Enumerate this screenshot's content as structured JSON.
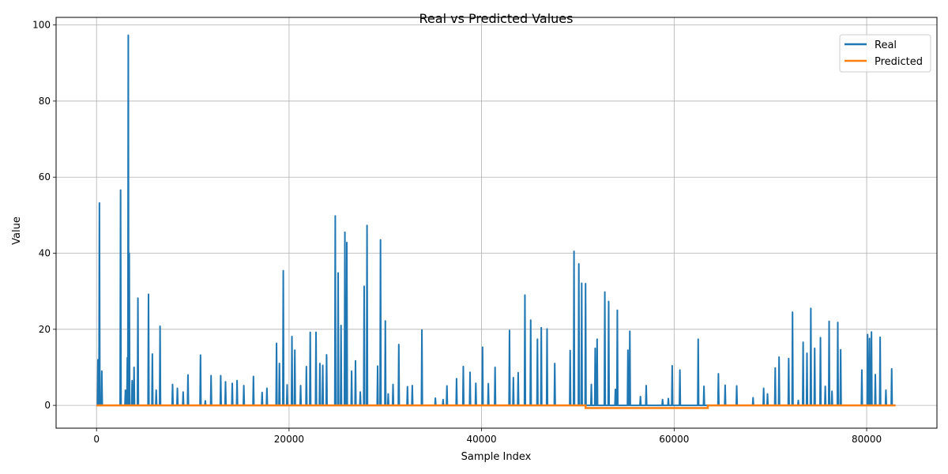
{
  "chart_data": {
    "type": "line",
    "title": "Real vs Predicted Values",
    "xlabel": "Sample Index",
    "ylabel": "Value",
    "xlim": [
      -4200,
      87300
    ],
    "ylim": [
      -6,
      102
    ],
    "x_ticks": [
      0,
      20000,
      40000,
      60000,
      80000
    ],
    "x_tick_labels": [
      "0",
      "20000",
      "40000",
      "60000",
      "80000"
    ],
    "y_ticks": [
      0,
      20,
      40,
      60,
      80,
      100
    ],
    "y_tick_labels": [
      "0",
      "20",
      "40",
      "60",
      "80",
      "100"
    ],
    "grid": true,
    "legend_position": "top-right",
    "series": [
      {
        "name": "Real",
        "color": "#1f77b4",
        "peaks": [
          [
            150,
            12
          ],
          [
            300,
            53.2
          ],
          [
            550,
            9
          ],
          [
            2500,
            56.6
          ],
          [
            3000,
            4
          ],
          [
            3200,
            12.5
          ],
          [
            3300,
            97.3
          ],
          [
            3400,
            40
          ],
          [
            3700,
            6.5
          ],
          [
            3900,
            10
          ],
          [
            4300,
            28.2
          ],
          [
            5400,
            29.2
          ],
          [
            5800,
            13.5
          ],
          [
            6200,
            4
          ],
          [
            6600,
            20.8
          ],
          [
            7900,
            5.5
          ],
          [
            8400,
            4.5
          ],
          [
            9000,
            3.5
          ],
          [
            9500,
            8
          ],
          [
            10800,
            13.2
          ],
          [
            11300,
            1.2
          ],
          [
            11900,
            7.8
          ],
          [
            12900,
            7.8
          ],
          [
            13400,
            6.2
          ],
          [
            14100,
            5.8
          ],
          [
            14600,
            6.5
          ],
          [
            15300,
            5.2
          ],
          [
            16300,
            7.6
          ],
          [
            17200,
            3.4
          ],
          [
            17700,
            4.5
          ],
          [
            18700,
            16.3
          ],
          [
            19000,
            11
          ],
          [
            19400,
            35.4
          ],
          [
            19800,
            5.4
          ],
          [
            20300,
            18.1
          ],
          [
            20600,
            14.5
          ],
          [
            21200,
            5.2
          ],
          [
            21800,
            10.2
          ],
          [
            22200,
            19.2
          ],
          [
            22800,
            19.2
          ],
          [
            23200,
            11
          ],
          [
            23500,
            10.5
          ],
          [
            23900,
            13.3
          ],
          [
            24800,
            49.8
          ],
          [
            25100,
            34.8
          ],
          [
            25400,
            21
          ],
          [
            25800,
            45.5
          ],
          [
            26000,
            42.8
          ],
          [
            26500,
            9
          ],
          [
            26900,
            11.7
          ],
          [
            27400,
            3.5
          ],
          [
            27800,
            31.3
          ],
          [
            28100,
            47.3
          ],
          [
            29200,
            10.3
          ],
          [
            29500,
            43.5
          ],
          [
            30000,
            22.2
          ],
          [
            30300,
            3
          ],
          [
            30800,
            5.5
          ],
          [
            31400,
            16
          ],
          [
            32300,
            4.9
          ],
          [
            32800,
            5.2
          ],
          [
            33800,
            19.8
          ],
          [
            35200,
            1.9
          ],
          [
            36000,
            1.5
          ],
          [
            36400,
            5.1
          ],
          [
            37400,
            7
          ],
          [
            38100,
            10.2
          ],
          [
            38800,
            8.7
          ],
          [
            39400,
            5.8
          ],
          [
            40100,
            15.3
          ],
          [
            40700,
            5.7
          ],
          [
            41400,
            10
          ],
          [
            42900,
            19.7
          ],
          [
            43300,
            7.3
          ],
          [
            43800,
            8.6
          ],
          [
            44500,
            29
          ],
          [
            45100,
            22.4
          ],
          [
            45800,
            17.4
          ],
          [
            46200,
            20.4
          ],
          [
            46800,
            20.1
          ],
          [
            47600,
            11
          ],
          [
            49200,
            14.4
          ],
          [
            49600,
            40.5
          ],
          [
            50100,
            37.2
          ],
          [
            50400,
            32.1
          ],
          [
            50800,
            32
          ],
          [
            51400,
            5.5
          ],
          [
            51800,
            15
          ],
          [
            52000,
            17.4
          ],
          [
            52800,
            29.8
          ],
          [
            53200,
            27.3
          ],
          [
            53900,
            4.2
          ],
          [
            54100,
            25
          ],
          [
            55200,
            14.5
          ],
          [
            55400,
            19.5
          ],
          [
            56500,
            2.3
          ],
          [
            57100,
            5.2
          ],
          [
            58800,
            1.5
          ],
          [
            59400,
            1.8
          ],
          [
            59800,
            10.4
          ],
          [
            60600,
            9.3
          ],
          [
            62500,
            17.4
          ],
          [
            63100,
            5
          ],
          [
            64600,
            8.3
          ],
          [
            65300,
            5.3
          ],
          [
            66500,
            5.1
          ],
          [
            68200,
            2
          ],
          [
            69300,
            4.5
          ],
          [
            69700,
            3
          ],
          [
            70500,
            9.8
          ],
          [
            70900,
            12.7
          ],
          [
            71900,
            12.3
          ],
          [
            72300,
            24.5
          ],
          [
            72900,
            1.3
          ],
          [
            73400,
            16.6
          ],
          [
            73800,
            13.7
          ],
          [
            74200,
            25.5
          ],
          [
            74600,
            15
          ],
          [
            75200,
            17.8
          ],
          [
            75700,
            5
          ],
          [
            76100,
            22.1
          ],
          [
            76400,
            3.7
          ],
          [
            77000,
            21.8
          ],
          [
            77300,
            14.6
          ],
          [
            79500,
            9.3
          ],
          [
            80100,
            18.6
          ],
          [
            80300,
            17.6
          ],
          [
            80500,
            19.3
          ],
          [
            80900,
            8.1
          ],
          [
            81400,
            17.9
          ],
          [
            82000,
            4
          ],
          [
            82600,
            9.6
          ]
        ]
      },
      {
        "name": "Predicted",
        "color": "#ff7f0e",
        "segments": [
          {
            "x_start": 0,
            "x_end": 50800,
            "value": 0
          },
          {
            "x_start": 50800,
            "x_end": 63500,
            "value": -0.7
          },
          {
            "x_start": 63500,
            "x_end": 83000,
            "value": 0
          }
        ]
      }
    ]
  }
}
